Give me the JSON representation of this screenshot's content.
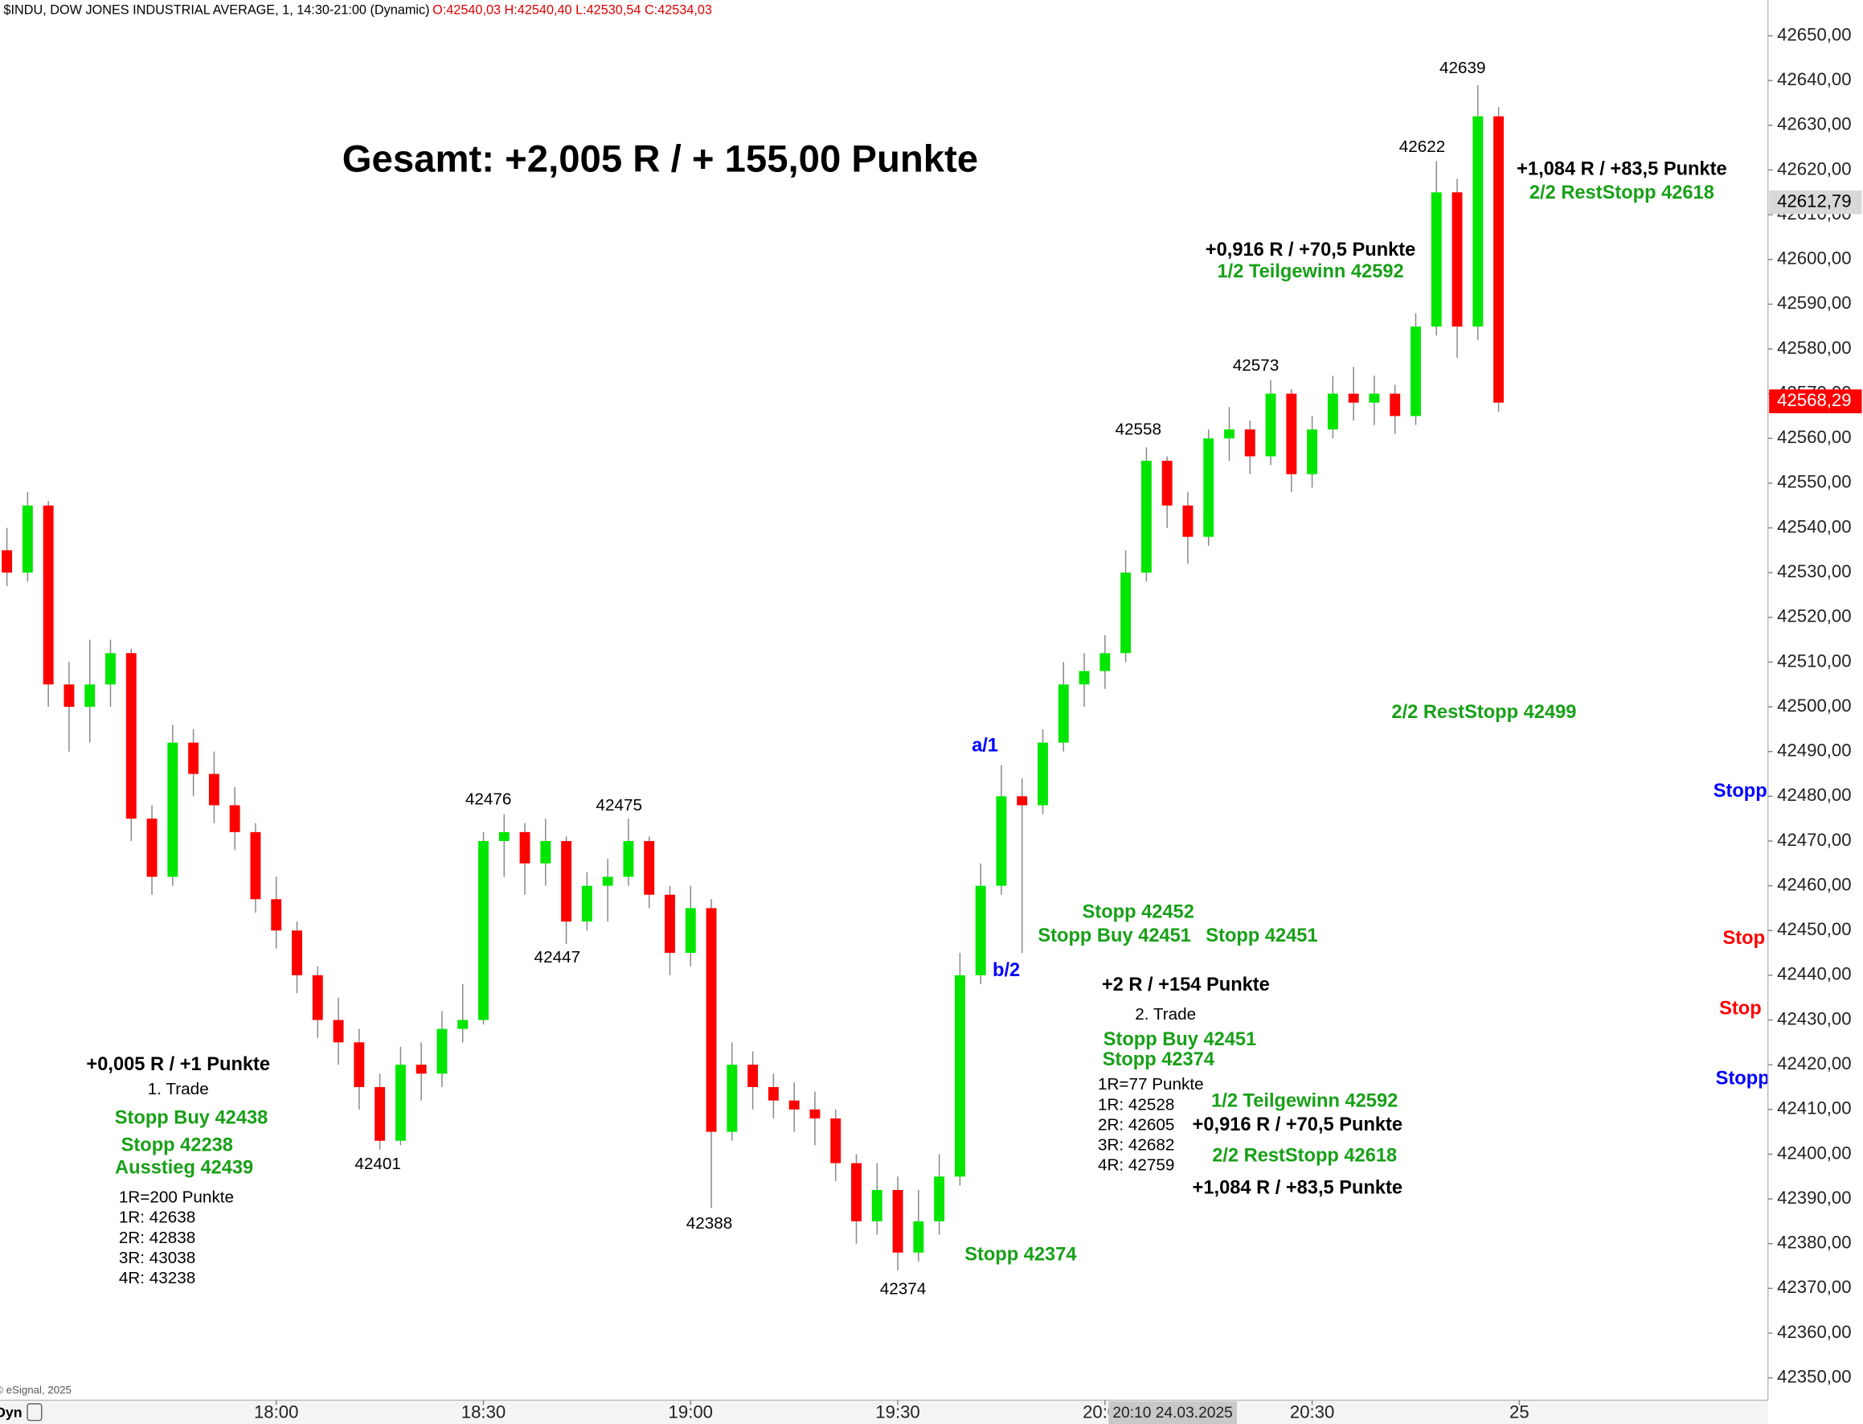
{
  "chart_data": {
    "type": "candlestick",
    "title": "Gesamt: +2,005 R / + 155,00 Punkte",
    "subtitle": "$INDU, DOW JONES INDUSTRIAL AVERAGE, 1, 14:30-21:00 (Dynamic)",
    "quote": "O:42540,03 H:42540,40 L:42530,54 C:42534,03",
    "copyright": "© eSignal, 2025",
    "footer_label": "Dyn",
    "crosshair_time": "20:10 24.03.2025",
    "x": [
      "17:21",
      "17:24",
      "17:27",
      "17:30",
      "17:33",
      "17:36",
      "17:39",
      "17:42",
      "17:45",
      "17:48",
      "17:51",
      "17:54",
      "17:57",
      "18:00",
      "18:03",
      "18:06",
      "18:09",
      "18:12",
      "18:15",
      "18:18",
      "18:21",
      "18:24",
      "18:27",
      "18:30",
      "18:33",
      "18:36",
      "18:39",
      "18:42",
      "18:45",
      "18:48",
      "18:51",
      "18:54",
      "18:57",
      "19:00",
      "19:03",
      "19:06",
      "19:09",
      "19:12",
      "19:15",
      "19:18",
      "19:21",
      "19:24",
      "19:27",
      "19:30",
      "19:33",
      "19:36",
      "19:39",
      "19:42",
      "19:45",
      "19:48",
      "19:51",
      "19:54",
      "19:57",
      "20:00",
      "20:03",
      "20:06",
      "20:09",
      "20:12",
      "20:15",
      "20:18",
      "20:21",
      "20:24",
      "20:27",
      "20:30",
      "20:33",
      "20:36",
      "20:39",
      "20:42",
      "20:45",
      "20:48",
      "20:51",
      "20:54",
      "20:57"
    ],
    "open": [
      42535,
      42530,
      42545,
      42505,
      42500,
      42505,
      42512,
      42475,
      42462,
      42492,
      42485,
      42478,
      42472,
      42457,
      42450,
      42440,
      42430,
      42425,
      42415,
      42403,
      42420,
      42418,
      42428,
      42430,
      42470,
      42472,
      42465,
      42470,
      42452,
      42460,
      42462,
      42470,
      42458,
      42445,
      42455,
      42405,
      42420,
      42415,
      42412,
      42410,
      42408,
      42398,
      42385,
      42392,
      42378,
      42385,
      42395,
      42440,
      42460,
      42480,
      42478,
      42492,
      42505,
      42508,
      42512,
      42530,
      42555,
      42545,
      42538,
      42560,
      42562,
      42556,
      42570,
      42552,
      42562,
      42570,
      42568,
      42570,
      42565,
      42585,
      42615,
      42585,
      42632
    ],
    "high": [
      42540,
      42548,
      42546,
      42510,
      42515,
      42515,
      42513,
      42478,
      42496,
      42495,
      42490,
      42482,
      42474,
      42462,
      42452,
      42442,
      42435,
      42428,
      42418,
      42424,
      42425,
      42432,
      42438,
      42472,
      42476,
      42474,
      42475,
      42471,
      42463,
      42466,
      42475,
      42471,
      42460,
      42460,
      42457,
      42425,
      42423,
      42418,
      42416,
      42414,
      42410,
      42400,
      42398,
      42395,
      42392,
      42400,
      42445,
      42465,
      42487,
      42484,
      42495,
      42510,
      42512,
      42516,
      42535,
      42558,
      42556,
      42548,
      42562,
      42567,
      42564,
      42573,
      42571,
      42565,
      42574,
      42576,
      42574,
      42572,
      42588,
      42622,
      42618,
      42639,
      42634
    ],
    "low": [
      42527,
      42528,
      42500,
      42490,
      42492,
      42500,
      42470,
      42458,
      42460,
      42480,
      42474,
      42468,
      42454,
      42446,
      42436,
      42426,
      42420,
      42410,
      42401,
      42402,
      42412,
      42415,
      42425,
      42429,
      42462,
      42458,
      42460,
      42447,
      42450,
      42452,
      42460,
      42455,
      42440,
      42442,
      42388,
      42403,
      42410,
      42408,
      42405,
      42402,
      42394,
      42380,
      42382,
      42374,
      42376,
      42382,
      42393,
      42438,
      42458,
      42445,
      42476,
      42490,
      42500,
      42504,
      42510,
      42528,
      42540,
      42532,
      42536,
      42555,
      42552,
      42554,
      42548,
      42549,
      42560,
      42564,
      42563,
      42561,
      42563,
      42583,
      42578,
      42582,
      42566
    ],
    "close": [
      42530,
      42545,
      42505,
      42500,
      42505,
      42512,
      42475,
      42462,
      42492,
      42485,
      42478,
      42472,
      42457,
      42450,
      42440,
      42430,
      42425,
      42415,
      42403,
      42420,
      42418,
      42428,
      42430,
      42470,
      42472,
      42465,
      42470,
      42452,
      42460,
      42462,
      42470,
      42458,
      42445,
      42455,
      42405,
      42420,
      42415,
      42412,
      42410,
      42408,
      42398,
      42385,
      42392,
      42378,
      42385,
      42395,
      42440,
      42460,
      42480,
      42478,
      42492,
      42505,
      42508,
      42512,
      42530,
      42555,
      42545,
      42538,
      42560,
      42562,
      42556,
      42570,
      42552,
      42562,
      42570,
      42568,
      42570,
      42565,
      42585,
      42615,
      42585,
      42632,
      42568
    ],
    "up_color": "#00e600",
    "down_color": "#ff0000",
    "xlim": [
      "17:20",
      "21:36"
    ],
    "xticks": [
      "18:00",
      "18:30",
      "19:00",
      "19:30",
      "20:00",
      "20:30",
      {
        "value": "21:00",
        "label": "25"
      }
    ],
    "ylim": [
      42345,
      42658
    ],
    "yticks": [
      {
        "value": 42350,
        "label": "42350,00"
      },
      {
        "value": 42360,
        "label": "42360,00"
      },
      {
        "value": 42370,
        "label": "42370,00"
      },
      {
        "value": 42380,
        "label": "42380,00"
      },
      {
        "value": 42390,
        "label": "42390,00"
      },
      {
        "value": 42400,
        "label": "42400,00"
      },
      {
        "value": 42410,
        "label": "42410,00"
      },
      {
        "value": 42420,
        "label": "42420,00"
      },
      {
        "value": 42430,
        "label": "42430,00"
      },
      {
        "value": 42440,
        "label": "42440,00"
      },
      {
        "value": 42450,
        "label": "42450,00"
      },
      {
        "value": 42460,
        "label": "42460,00"
      },
      {
        "value": 42470,
        "label": "42470,00"
      },
      {
        "value": 42480,
        "label": "42480,00"
      },
      {
        "value": 42490,
        "label": "42490,00"
      },
      {
        "value": 42500,
        "label": "42500,00"
      },
      {
        "value": 42510,
        "label": "42510,00"
      },
      {
        "value": 42520,
        "label": "42520,00"
      },
      {
        "value": 42530,
        "label": "42530,00"
      },
      {
        "value": 42540,
        "label": "42540,00"
      },
      {
        "value": 42550,
        "label": "42550,00"
      },
      {
        "value": 42560,
        "label": "42560,00"
      },
      {
        "value": 42570,
        "label": "42570,00"
      },
      {
        "value": 42580,
        "label": "42580,00"
      },
      {
        "value": 42590,
        "label": "42590,00"
      },
      {
        "value": 42600,
        "label": "42600,00"
      },
      {
        "value": 42610,
        "label": "42610,00"
      },
      {
        "value": 42620,
        "label": "42620,00"
      },
      {
        "value": 42630,
        "label": "42630,00"
      },
      {
        "value": 42640,
        "label": "42640,00"
      },
      {
        "value": 42650,
        "label": "42650,00"
      }
    ],
    "crosshair_price": {
      "value": 42612.79,
      "label": "42612,79"
    },
    "last_price": {
      "value": 42568.29,
      "label": "42568,29"
    },
    "annotations": [
      "42639",
      "42622",
      "42573",
      "42558",
      "42476",
      "42475",
      "42447",
      "42401",
      "42388",
      "42374",
      "+1,084 R / +83,5 Punkte",
      "2/2 RestStopp 42618",
      "+0,916 R / +70,5 Punkte",
      "1/2 Teilgewinn 42592",
      "2/2 RestStopp 42499",
      "a/1",
      "b/2",
      "Stopp 42452",
      "Stopp Buy 42451",
      "Stopp 42451",
      "+2 R / +154 Punkte",
      "2. Trade",
      "Stopp Buy 42451",
      "Stopp 42374",
      "1R=77 Punkte",
      "1R: 42528",
      "2R: 42605",
      "3R: 42682",
      "4R: 42759",
      "1/2 Teilgewinn 42592",
      "+0,916 R / +70,5 Punkte",
      "2/2 RestStopp 42618",
      "+1,084 R / +83,5 Punkte",
      "Stopp 42374",
      "+0,005 R / +1 Punkte",
      "1. Trade",
      "Stopp Buy 42438",
      "Stopp 42238",
      "Ausstieg 42439",
      "1R=200 Punkte",
      "1R: 42638",
      "2R: 42838",
      "3R: 43038",
      "4R: 43238",
      "Stopp",
      "Stop",
      "Stop",
      "Stopp"
    ]
  }
}
